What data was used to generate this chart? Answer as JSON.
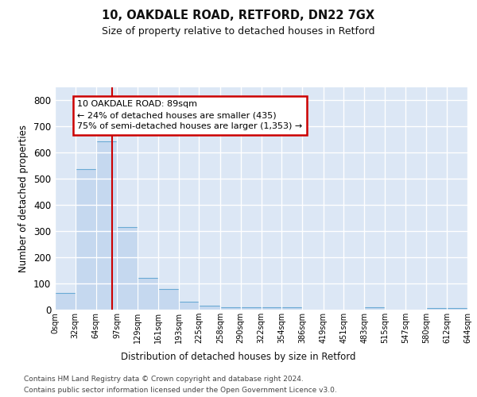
{
  "title1": "10, OAKDALE ROAD, RETFORD, DN22 7GX",
  "title2": "Size of property relative to detached houses in Retford",
  "xlabel": "Distribution of detached houses by size in Retford",
  "ylabel": "Number of detached properties",
  "bar_edges": [
    0,
    32,
    64,
    97,
    129,
    161,
    193,
    225,
    258,
    290,
    322,
    354,
    386,
    419,
    451,
    483,
    515,
    547,
    580,
    612,
    644
  ],
  "bar_heights": [
    65,
    537,
    644,
    317,
    120,
    78,
    30,
    15,
    10,
    10,
    10,
    8,
    0,
    0,
    0,
    8,
    0,
    0,
    5,
    5
  ],
  "bar_color": "#c5d8ef",
  "bar_edgecolor": "#6aaad4",
  "property_size": 89,
  "property_line_color": "#cc0000",
  "annotation_text": "10 OAKDALE ROAD: 89sqm\n← 24% of detached houses are smaller (435)\n75% of semi-detached houses are larger (1,353) →",
  "annotation_box_facecolor": "#ffffff",
  "annotation_box_edgecolor": "#cc0000",
  "ylim": [
    0,
    850
  ],
  "yticks": [
    0,
    100,
    200,
    300,
    400,
    500,
    600,
    700,
    800
  ],
  "fig_bg_color": "#ffffff",
  "plot_bg_color": "#dce7f5",
  "grid_color": "#ffffff",
  "footer1": "Contains HM Land Registry data © Crown copyright and database right 2024.",
  "footer2": "Contains public sector information licensed under the Open Government Licence v3.0.",
  "tick_labels": [
    "0sqm",
    "32sqm",
    "64sqm",
    "97sqm",
    "129sqm",
    "161sqm",
    "193sqm",
    "225sqm",
    "258sqm",
    "290sqm",
    "322sqm",
    "354sqm",
    "386sqm",
    "419sqm",
    "451sqm",
    "483sqm",
    "515sqm",
    "547sqm",
    "580sqm",
    "612sqm",
    "644sqm"
  ]
}
